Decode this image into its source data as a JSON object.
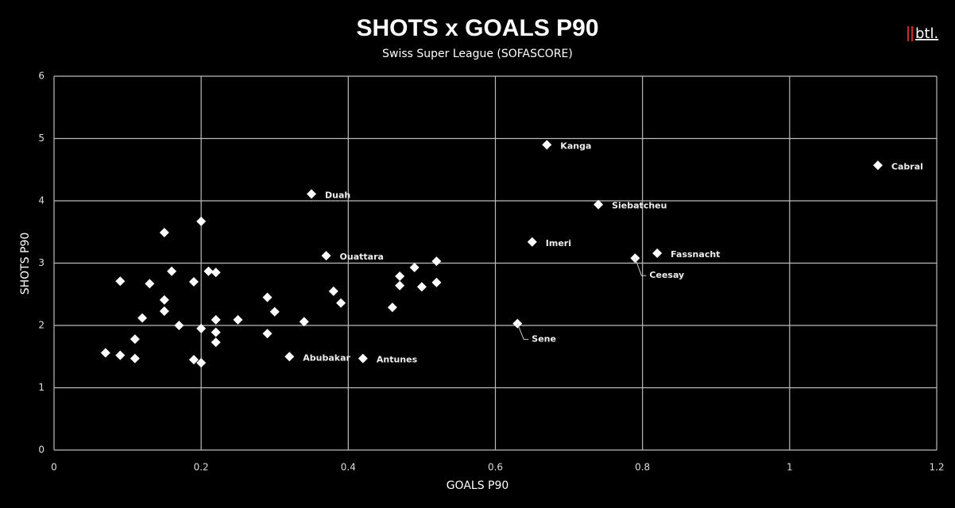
{
  "chart_data": {
    "type": "scatter",
    "title": "SHOTS x GOALS P90",
    "subtitle": "Swiss Super League (SOFASCORE)",
    "logo": "btl.",
    "x_label": "GOALS P90",
    "y_label": "SHOTS P90",
    "xlim": [
      0,
      1.2
    ],
    "ylim": [
      0,
      6
    ],
    "xticks": [
      0,
      0.2,
      0.4,
      0.6,
      0.8,
      1,
      1.2
    ],
    "yticks": [
      0,
      1,
      2,
      3,
      4,
      5,
      6
    ],
    "grid": true,
    "color": "#ffffff",
    "x": [
      0.67,
      1.12,
      0.35,
      0.74,
      0.65,
      0.37,
      0.82,
      0.79,
      0.63,
      0.32,
      0.42,
      0.07,
      0.09,
      0.11,
      0.11,
      0.12,
      0.09,
      0.13,
      0.15,
      0.15,
      0.15,
      0.16,
      0.17,
      0.19,
      0.2,
      0.21,
      0.22,
      0.19,
      0.2,
      0.2,
      0.22,
      0.22,
      0.22,
      0.25,
      0.29,
      0.3,
      0.29,
      0.34,
      0.38,
      0.39,
      0.46,
      0.47,
      0.47,
      0.49,
      0.5,
      0.52,
      0.52
    ],
    "y": [
      4.9,
      4.57,
      4.11,
      3.94,
      3.34,
      3.12,
      3.16,
      3.08,
      2.03,
      1.5,
      1.47,
      1.56,
      1.52,
      1.47,
      1.78,
      2.12,
      2.71,
      2.67,
      3.49,
      2.41,
      2.23,
      2.87,
      2.0,
      2.7,
      3.67,
      2.87,
      2.85,
      1.45,
      1.4,
      1.95,
      2.09,
      1.89,
      1.73,
      2.09,
      2.45,
      2.22,
      1.87,
      2.06,
      2.55,
      2.36,
      2.29,
      2.79,
      2.64,
      2.93,
      2.62,
      3.03,
      2.69
    ],
    "labels": [
      "Kanga",
      "Cabral",
      "Duah",
      "Siebatcheu",
      "Imeri",
      "Ouattara",
      "Fassnacht",
      "Ceesay",
      "Sene",
      "Abubakar",
      "Antunes",
      null,
      null,
      null,
      null,
      null,
      null,
      null,
      null,
      null,
      null,
      null,
      null,
      null,
      null,
      null,
      null,
      null,
      null,
      null,
      null,
      null,
      null,
      null,
      null,
      null,
      null,
      null,
      null,
      null,
      null,
      null,
      null,
      null,
      null,
      null,
      null
    ]
  }
}
